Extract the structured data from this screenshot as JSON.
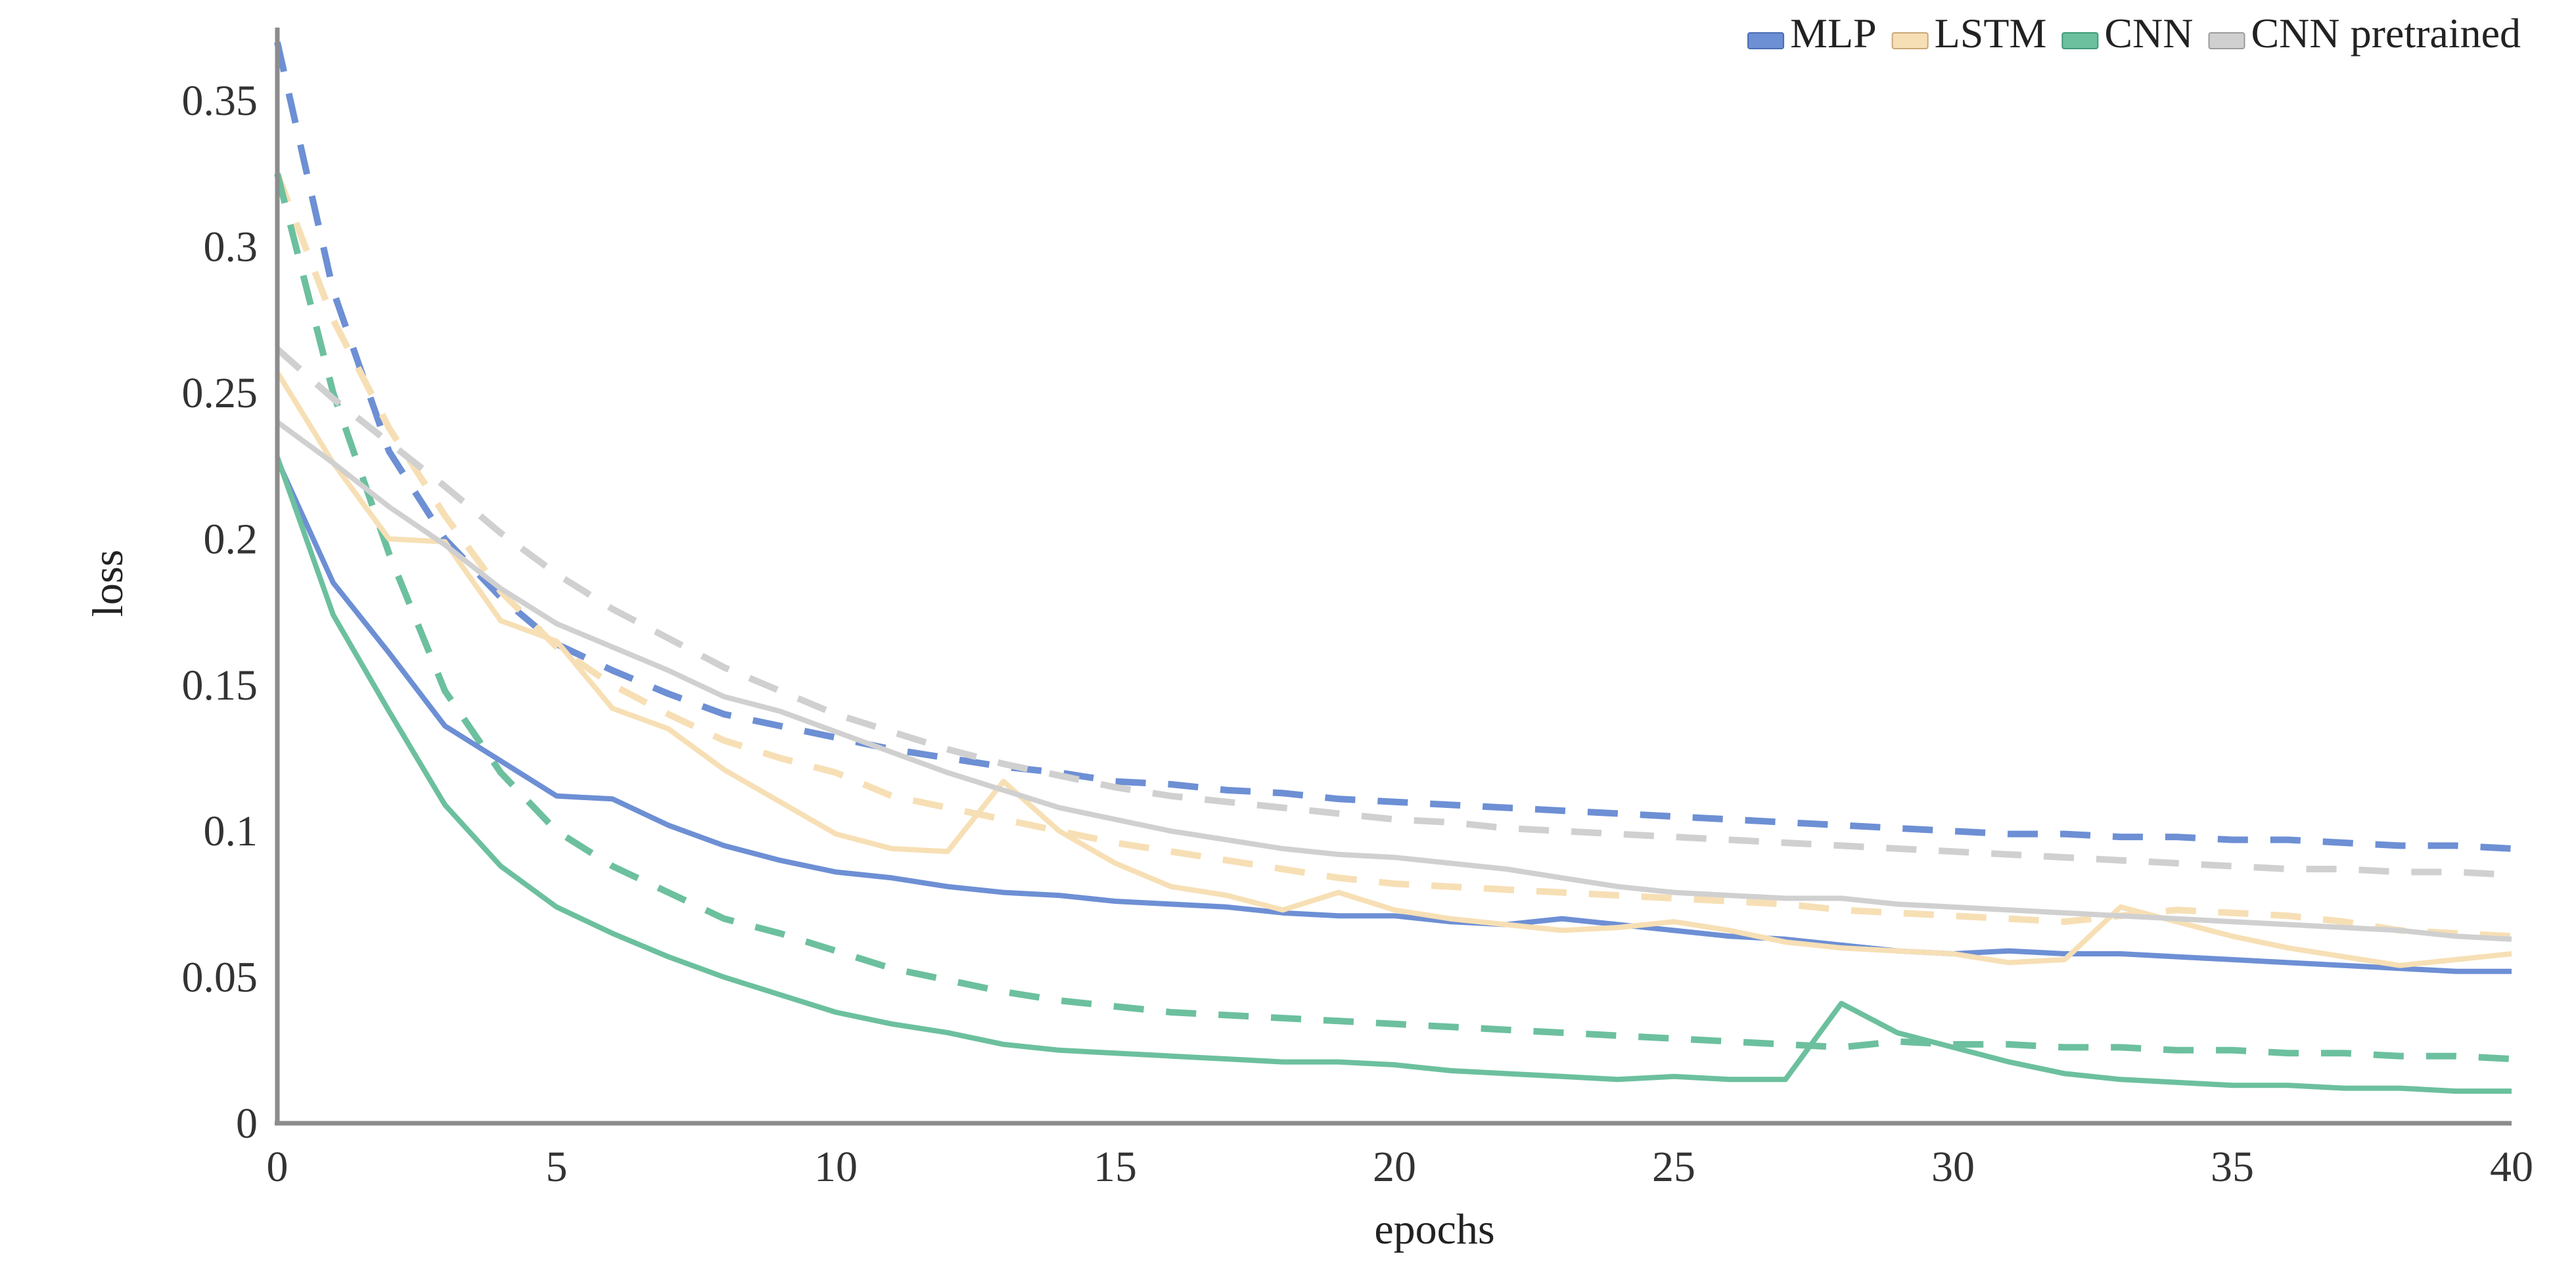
{
  "chart_data": {
    "type": "line",
    "title": "",
    "xlabel": "epochs",
    "ylabel": "loss",
    "xlim": [
      0,
      40
    ],
    "ylim": [
      0,
      0.375
    ],
    "xticks": [
      0,
      5,
      10,
      15,
      20,
      25,
      30,
      35,
      40
    ],
    "xtick_labels": [
      "0",
      "5",
      "10",
      "15",
      "20",
      "25",
      "30",
      "35",
      "40"
    ],
    "yticks": [
      0,
      0.05,
      0.1,
      0.15,
      0.2,
      0.25,
      0.3,
      0.35
    ],
    "ytick_labels": [
      "0",
      "0.05",
      "0.1",
      "0.15",
      "0.2",
      "0.25",
      "0.3",
      "0.35"
    ],
    "grid": false,
    "legend_position": "top-right",
    "legend": [
      {
        "name": "MLP",
        "color": "#6d8fd4"
      },
      {
        "name": "LSTM",
        "color": "#f7dfb5"
      },
      {
        "name": "CNN",
        "color": "#6cc09e"
      },
      {
        "name": "CNN pretrained",
        "color": "#d0d0d0"
      }
    ],
    "x": [
      0,
      1,
      2,
      3,
      4,
      5,
      6,
      7,
      8,
      9,
      10,
      11,
      12,
      13,
      14,
      15,
      16,
      17,
      18,
      19,
      20,
      21,
      22,
      23,
      24,
      25,
      26,
      27,
      28,
      29,
      30,
      31,
      32,
      33,
      34,
      35,
      36,
      37,
      38,
      39,
      40
    ],
    "series": [
      {
        "name": "MLP",
        "style": "solid",
        "color": "#6d8fd4",
        "values": [
          0.227,
          0.185,
          0.161,
          0.136,
          0.124,
          0.112,
          0.111,
          0.102,
          0.095,
          0.09,
          0.086,
          0.084,
          0.081,
          0.079,
          0.078,
          0.076,
          0.075,
          0.074,
          0.072,
          0.071,
          0.071,
          0.069,
          0.068,
          0.07,
          0.068,
          0.066,
          0.064,
          0.063,
          0.061,
          0.059,
          0.058,
          0.059,
          0.058,
          0.058,
          0.057,
          0.056,
          0.055,
          0.054,
          0.053,
          0.052,
          0.052
        ]
      },
      {
        "name": "LSTM",
        "style": "solid",
        "color": "#f7dfb5",
        "values": [
          0.257,
          0.226,
          0.2,
          0.199,
          0.172,
          0.165,
          0.142,
          0.135,
          0.121,
          0.11,
          0.099,
          0.094,
          0.093,
          0.117,
          0.1,
          0.089,
          0.081,
          0.078,
          0.073,
          0.079,
          0.073,
          0.07,
          0.068,
          0.066,
          0.067,
          0.069,
          0.066,
          0.062,
          0.06,
          0.059,
          0.058,
          0.055,
          0.056,
          0.074,
          0.069,
          0.064,
          0.06,
          0.057,
          0.054,
          0.056,
          0.058
        ]
      },
      {
        "name": "CNN",
        "style": "solid",
        "color": "#6cc09e",
        "values": [
          0.228,
          0.174,
          0.141,
          0.109,
          0.088,
          0.074,
          0.065,
          0.057,
          0.05,
          0.044,
          0.038,
          0.034,
          0.031,
          0.027,
          0.025,
          0.024,
          0.023,
          0.022,
          0.021,
          0.021,
          0.02,
          0.018,
          0.017,
          0.016,
          0.015,
          0.016,
          0.015,
          0.015,
          0.041,
          0.031,
          0.026,
          0.021,
          0.017,
          0.015,
          0.014,
          0.013,
          0.013,
          0.012,
          0.012,
          0.011,
          0.011
        ]
      },
      {
        "name": "CNN pretrained",
        "style": "solid",
        "color": "#d0d0d0",
        "values": [
          0.24,
          0.226,
          0.211,
          0.198,
          0.183,
          0.171,
          0.163,
          0.155,
          0.146,
          0.141,
          0.134,
          0.127,
          0.12,
          0.114,
          0.108,
          0.104,
          0.1,
          0.097,
          0.094,
          0.092,
          0.091,
          0.089,
          0.087,
          0.084,
          0.081,
          0.079,
          0.078,
          0.077,
          0.077,
          0.075,
          0.074,
          0.073,
          0.072,
          0.071,
          0.07,
          0.069,
          0.068,
          0.067,
          0.066,
          0.064,
          0.063
        ]
      },
      {
        "name": "MLP",
        "style": "dashed",
        "color": "#6d8fd4",
        "values": [
          0.37,
          0.285,
          0.23,
          0.2,
          0.18,
          0.164,
          0.155,
          0.147,
          0.14,
          0.136,
          0.132,
          0.128,
          0.125,
          0.122,
          0.12,
          0.117,
          0.116,
          0.114,
          0.113,
          0.111,
          0.11,
          0.109,
          0.108,
          0.107,
          0.106,
          0.105,
          0.104,
          0.103,
          0.102,
          0.101,
          0.1,
          0.099,
          0.099,
          0.098,
          0.098,
          0.097,
          0.097,
          0.096,
          0.095,
          0.095,
          0.094
        ]
      },
      {
        "name": "LSTM",
        "style": "dashed",
        "color": "#f7dfb5",
        "values": [
          0.325,
          0.275,
          0.238,
          0.208,
          0.182,
          0.163,
          0.15,
          0.14,
          0.131,
          0.125,
          0.12,
          0.112,
          0.108,
          0.104,
          0.1,
          0.096,
          0.093,
          0.09,
          0.087,
          0.084,
          0.082,
          0.081,
          0.08,
          0.079,
          0.078,
          0.077,
          0.076,
          0.075,
          0.073,
          0.072,
          0.071,
          0.07,
          0.069,
          0.071,
          0.073,
          0.072,
          0.071,
          0.069,
          0.066,
          0.065,
          0.064
        ]
      },
      {
        "name": "CNN",
        "style": "dashed",
        "color": "#6cc09e",
        "values": [
          0.325,
          0.25,
          0.195,
          0.148,
          0.12,
          0.1,
          0.088,
          0.079,
          0.07,
          0.065,
          0.059,
          0.053,
          0.049,
          0.045,
          0.042,
          0.04,
          0.038,
          0.037,
          0.036,
          0.035,
          0.034,
          0.033,
          0.032,
          0.031,
          0.03,
          0.029,
          0.028,
          0.027,
          0.026,
          0.028,
          0.027,
          0.027,
          0.026,
          0.026,
          0.025,
          0.025,
          0.024,
          0.024,
          0.023,
          0.023,
          0.022
        ]
      },
      {
        "name": "CNN pretrained",
        "style": "dashed",
        "color": "#d0d0d0",
        "values": [
          0.265,
          0.248,
          0.233,
          0.218,
          0.202,
          0.188,
          0.176,
          0.166,
          0.156,
          0.148,
          0.14,
          0.134,
          0.128,
          0.123,
          0.119,
          0.115,
          0.112,
          0.11,
          0.108,
          0.106,
          0.104,
          0.103,
          0.101,
          0.1,
          0.099,
          0.098,
          0.097,
          0.096,
          0.095,
          0.094,
          0.093,
          0.092,
          0.091,
          0.09,
          0.089,
          0.088,
          0.087,
          0.087,
          0.086,
          0.086,
          0.085
        ]
      }
    ]
  }
}
